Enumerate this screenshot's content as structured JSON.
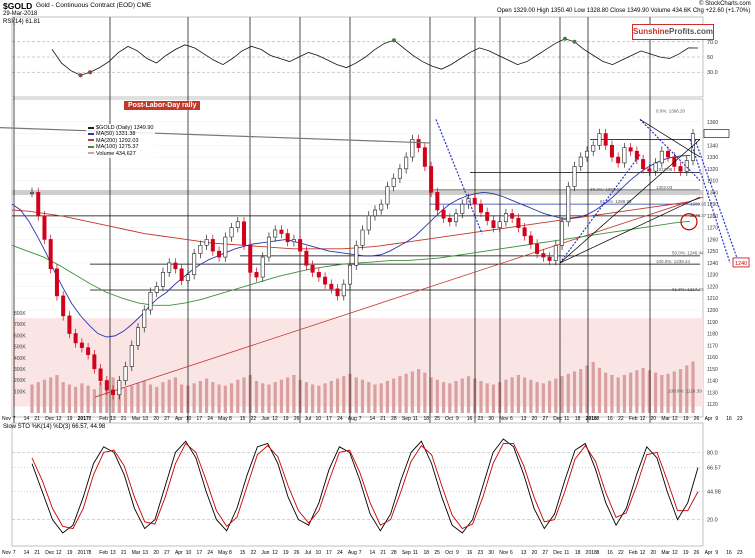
{
  "header": {
    "symbol": "$GOLD",
    "title": "Gold - Continuous Contract (EOD) CME",
    "date": "29-Mar-2018",
    "ohlc": "Open 1329.00 High 1350.40 Low 1328.80 Close 1349.90 Volume 434.6K Chg +22.60 (+1.70%)",
    "credit": "© StockCharts.com"
  },
  "brand": {
    "name": "Sunshine",
    "suffix": "Profits.com"
  },
  "annotation": {
    "rally_label": "Post-Labor-Day rally"
  },
  "colors": {
    "price_up": "#222222",
    "price_down": "#d0021b",
    "ma50": "#2a35a8",
    "ma200": "#c0392b",
    "ma100": "#3c8f3c",
    "volume": "#d9a0a0",
    "rsi_fill": "#3f7f3f",
    "stoch_k": "#000000",
    "stoch_d": "#cc0000",
    "pink_zone": "#fbe4e4",
    "highlight_circle": "#cc0000"
  },
  "chart_data": [
    {
      "type": "line",
      "panel": "RSI",
      "title": "RSI(14) 61.81",
      "ylim": [
        0,
        100
      ],
      "yticks": [
        "70.0",
        "50",
        "30.0"
      ],
      "series": [
        {
          "name": "RSI(14)",
          "values": [
            60,
            42,
            32,
            26,
            30,
            36,
            44,
            56,
            64,
            58,
            48,
            42,
            52,
            60,
            66,
            62,
            54,
            46,
            40,
            48,
            58,
            64,
            60,
            52,
            48,
            44,
            50,
            56,
            52,
            46,
            40,
            36,
            42,
            50,
            60,
            68,
            72,
            62,
            52,
            44,
            38,
            34,
            40,
            48,
            56,
            62,
            58,
            52,
            46,
            40,
            44,
            52,
            60,
            68,
            74,
            70,
            60,
            52,
            44,
            40,
            46,
            52,
            58,
            54,
            50,
            48,
            54,
            62,
            61.81
          ]
        }
      ]
    },
    {
      "type": "bar",
      "panel": "price",
      "legend": [
        "$GOLD (Daily) 1349.90",
        "MA(50) 1331.38",
        "MA(200) 1292.03",
        "MA(100) 1275.37",
        "Volume 434,627"
      ],
      "ylim": [
        1115,
        1370
      ],
      "yticks": [
        1120,
        1130,
        1140,
        1150,
        1160,
        1170,
        1180,
        1190,
        1200,
        1210,
        1220,
        1230,
        1240,
        1250,
        1260,
        1270,
        1280,
        1290,
        1300,
        1310,
        1320,
        1330,
        1340,
        1350,
        1360
      ],
      "volume_ticks": [
        "800K",
        "700K",
        "600K",
        "500K",
        "400K",
        "300K",
        "200K",
        "100K"
      ],
      "close": [
        1300,
        1280,
        1260,
        1235,
        1212,
        1195,
        1180,
        1172,
        1168,
        1162,
        1150,
        1140,
        1132,
        1128,
        1140,
        1152,
        1170,
        1185,
        1200,
        1215,
        1220,
        1232,
        1240,
        1235,
        1225,
        1230,
        1248,
        1255,
        1260,
        1250,
        1245,
        1262,
        1270,
        1275,
        1255,
        1232,
        1228,
        1245,
        1262,
        1268,
        1265,
        1258,
        1260,
        1250,
        1238,
        1232,
        1228,
        1222,
        1218,
        1212,
        1222,
        1238,
        1255,
        1268,
        1280,
        1285,
        1290,
        1305,
        1312,
        1320,
        1330,
        1345,
        1338,
        1322,
        1300,
        1285,
        1278,
        1275,
        1282,
        1290,
        1295,
        1290,
        1283,
        1276,
        1270,
        1275,
        1282,
        1278,
        1270,
        1263,
        1256,
        1248,
        1245,
        1242,
        1255,
        1275,
        1305,
        1322,
        1330,
        1335,
        1340,
        1350,
        1340,
        1330,
        1325,
        1338,
        1335,
        1328,
        1320,
        1318,
        1325,
        1335,
        1330,
        1322,
        1318,
        1327,
        1349.9
      ],
      "ma50": [
        1290,
        1285,
        1275,
        1262,
        1248,
        1232,
        1218,
        1205,
        1195,
        1187,
        1180,
        1177,
        1178,
        1182,
        1188,
        1195,
        1203,
        1210,
        1215,
        1222,
        1228,
        1234,
        1239,
        1243,
        1246,
        1249,
        1252,
        1254,
        1256,
        1257,
        1258,
        1259,
        1260,
        1258,
        1256,
        1254,
        1252,
        1250,
        1249,
        1248,
        1247,
        1246,
        1246,
        1247,
        1250,
        1254,
        1258,
        1263,
        1270,
        1277,
        1284,
        1290,
        1294,
        1297,
        1299,
        1300,
        1299,
        1297,
        1294,
        1291,
        1288,
        1285,
        1282,
        1280,
        1278,
        1278,
        1279,
        1281,
        1285,
        1290,
        1296,
        1303,
        1310,
        1316,
        1321,
        1325,
        1328,
        1330,
        1331,
        1331.38
      ],
      "ma200": [
        1285,
        1284,
        1282,
        1280,
        1277,
        1274,
        1271,
        1268,
        1265,
        1263,
        1261,
        1259,
        1257,
        1256,
        1255,
        1254,
        1253,
        1252,
        1252,
        1252,
        1252,
        1253,
        1254,
        1256,
        1258,
        1260,
        1262,
        1264,
        1266,
        1268,
        1270,
        1272,
        1274,
        1276,
        1278,
        1280,
        1282,
        1284,
        1286,
        1288,
        1290,
        1292.03
      ],
      "ma100": [
        1255,
        1250,
        1245,
        1238,
        1230,
        1222,
        1215,
        1210,
        1206,
        1204,
        1204,
        1206,
        1209,
        1213,
        1217,
        1221,
        1225,
        1229,
        1232,
        1235,
        1237,
        1239,
        1240,
        1241,
        1242,
        1242,
        1243,
        1244,
        1246,
        1248,
        1250,
        1252,
        1254,
        1256,
        1258,
        1260,
        1262,
        1264,
        1266,
        1268,
        1270,
        1272,
        1274,
        1275.37
      ],
      "volume": [
        240,
        260,
        280,
        300,
        320,
        260,
        240,
        220,
        250,
        230,
        200,
        260,
        280,
        300,
        240,
        210,
        230,
        250,
        270,
        240,
        220,
        260,
        280,
        300,
        240,
        230,
        250,
        270,
        290,
        260,
        240,
        230,
        250,
        280,
        300,
        320,
        270,
        250,
        240,
        260,
        280,
        300,
        320,
        280,
        260,
        240,
        230,
        250,
        270,
        290,
        310,
        330,
        300,
        280,
        260,
        240,
        250,
        270,
        290,
        310,
        330,
        350,
        370,
        340,
        300,
        280,
        260,
        250,
        270,
        290,
        310,
        290,
        270,
        250,
        240,
        260,
        280,
        300,
        320,
        300,
        280,
        260,
        250,
        270,
        290,
        310,
        330,
        350,
        370,
        400,
        430,
        380,
        340,
        320,
        300,
        320,
        340,
        360,
        380,
        360,
        340,
        320,
        330,
        350,
        370,
        400,
        434.6
      ],
      "level_labels": [
        "1317.06",
        "1302.03",
        "1288.95",
        "1278.37",
        "61.8%: 1217.23",
        "100.0%: 1239.24",
        "38.2%: 1302.03",
        "61.8%: 1288.95",
        "50.0%: 1246.44",
        "0.0%: 1366.20",
        "100.0%: 1126.39"
      ],
      "highlight_label": "1240"
    },
    {
      "type": "line",
      "panel": "stochastic",
      "title": "Slow STO %K(14) %D(3) 66.57, 44.98",
      "ylim": [
        0,
        100
      ],
      "yticks": [
        "80.0",
        "66.57",
        "44.98",
        "20.0"
      ],
      "series": [
        {
          "name": "%K",
          "values": [
            70,
            45,
            20,
            8,
            15,
            40,
            70,
            85,
            80,
            60,
            30,
            12,
            20,
            50,
            80,
            90,
            75,
            45,
            20,
            10,
            30,
            60,
            85,
            88,
            70,
            40,
            20,
            15,
            35,
            65,
            85,
            80,
            55,
            25,
            10,
            25,
            55,
            80,
            90,
            70,
            40,
            15,
            8,
            20,
            50,
            80,
            92,
            85,
            60,
            30,
            12,
            25,
            55,
            82,
            88,
            65,
            35,
            15,
            30,
            60,
            85,
            75,
            45,
            20,
            35,
            66.57
          ]
        },
        {
          "name": "%D",
          "values": [
            75,
            55,
            30,
            14,
            12,
            30,
            60,
            80,
            82,
            68,
            40,
            18,
            16,
            40,
            70,
            88,
            80,
            55,
            28,
            14,
            22,
            50,
            78,
            86,
            76,
            50,
            28,
            17,
            28,
            55,
            80,
            82,
            62,
            35,
            15,
            20,
            45,
            72,
            86,
            78,
            50,
            24,
            12,
            16,
            40,
            70,
            88,
            88,
            68,
            40,
            18,
            20,
            45,
            74,
            86,
            72,
            44,
            22,
            26,
            50,
            78,
            80,
            55,
            28,
            28,
            44.98
          ]
        }
      ]
    }
  ],
  "x_axis": {
    "months_top": [
      "Nov",
      "7",
      "14",
      "21",
      "Dec",
      "12",
      "19",
      "2017",
      "8",
      "Feb",
      "13",
      "21",
      "Mar",
      "13",
      "20",
      "27",
      "Apr",
      "10",
      "17",
      "24",
      "May",
      "8",
      "15",
      "22",
      "Jun",
      "12",
      "19",
      "26",
      "Jul",
      "10",
      "17",
      "24",
      "Aug",
      "7",
      "14",
      "21",
      "28",
      "Sep",
      "11",
      "18",
      "25",
      "Oct",
      "9",
      "16",
      "23",
      "30",
      "Nov",
      "6",
      "13",
      "20",
      "27",
      "Dec",
      "11",
      "18",
      "2018",
      "8",
      "16",
      "22",
      "Feb",
      "12",
      "20",
      "Mar",
      "12",
      "19",
      "26",
      "Apr",
      "9",
      "16",
      "23"
    ]
  }
}
